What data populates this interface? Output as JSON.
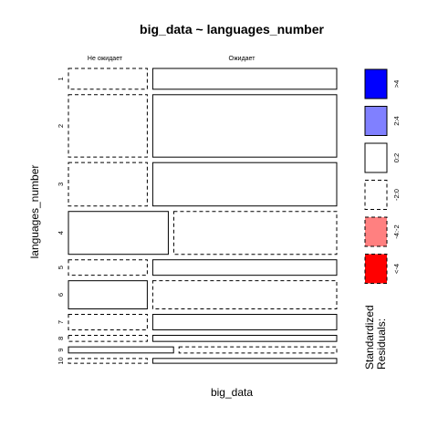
{
  "chart_data": {
    "type": "mosaic",
    "title": "big_data ~ languages_number",
    "xlabel": "big_data",
    "ylabel": "languages_number",
    "columns": [
      "Не ожидает",
      "Ожидает"
    ],
    "rows": [
      "1",
      "2",
      "3",
      "4",
      "5",
      "6",
      "7",
      "8",
      "9",
      "10"
    ],
    "row_proportions": [
      0.082,
      0.246,
      0.171,
      0.169,
      0.061,
      0.111,
      0.061,
      0.024,
      0.024,
      0.019
    ],
    "column_proportions_by_row": [
      0.3,
      0.3,
      0.3,
      0.38,
      0.3,
      0.3,
      0.3,
      0.3,
      0.4,
      0.3
    ],
    "residual_sign": [
      [
        "neg",
        "pos"
      ],
      [
        "neg",
        "pos"
      ],
      [
        "neg",
        "pos"
      ],
      [
        "pos",
        "neg"
      ],
      [
        "neg",
        "pos"
      ],
      [
        "pos",
        "neg"
      ],
      [
        "neg",
        "pos"
      ],
      [
        "neg",
        "pos"
      ],
      [
        "pos",
        "neg"
      ],
      [
        "neg",
        "pos"
      ]
    ],
    "legend": {
      "title_lines": [
        "Standardized",
        "Residuals:"
      ],
      "bins": [
        {
          "label": ">4",
          "fill": "#0000FF",
          "style": "solid"
        },
        {
          "label": "2:4",
          "fill": "#8080FF",
          "style": "solid"
        },
        {
          "label": "0:2",
          "fill": "#FFFFFF",
          "style": "solid"
        },
        {
          "label": "-2:0",
          "fill": "#FFFFFF",
          "style": "dashed"
        },
        {
          "label": "-4:-2",
          "fill": "#FF8080",
          "style": "dashed"
        },
        {
          "label": "<-4",
          "fill": "#FF0000",
          "style": "dashed"
        }
      ]
    }
  }
}
